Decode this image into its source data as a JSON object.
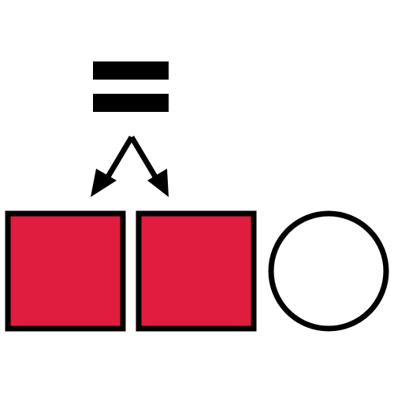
{
  "colors": {
    "background": "#ffffff",
    "outline": "#000000",
    "square_fill": "#e01c3f",
    "circle_fill": "#ffffff"
  },
  "diagram": {
    "equals_sign": {
      "icon": "equals-icon"
    },
    "split_arrow": {
      "icon": "split-arrow-icon",
      "branches": 2
    },
    "shapes": [
      {
        "kind": "square",
        "state": "filled",
        "icon": "filled-square-icon"
      },
      {
        "kind": "square",
        "state": "filled",
        "icon": "filled-square-icon"
      },
      {
        "kind": "circle",
        "state": "empty",
        "icon": "empty-circle-icon"
      }
    ]
  }
}
